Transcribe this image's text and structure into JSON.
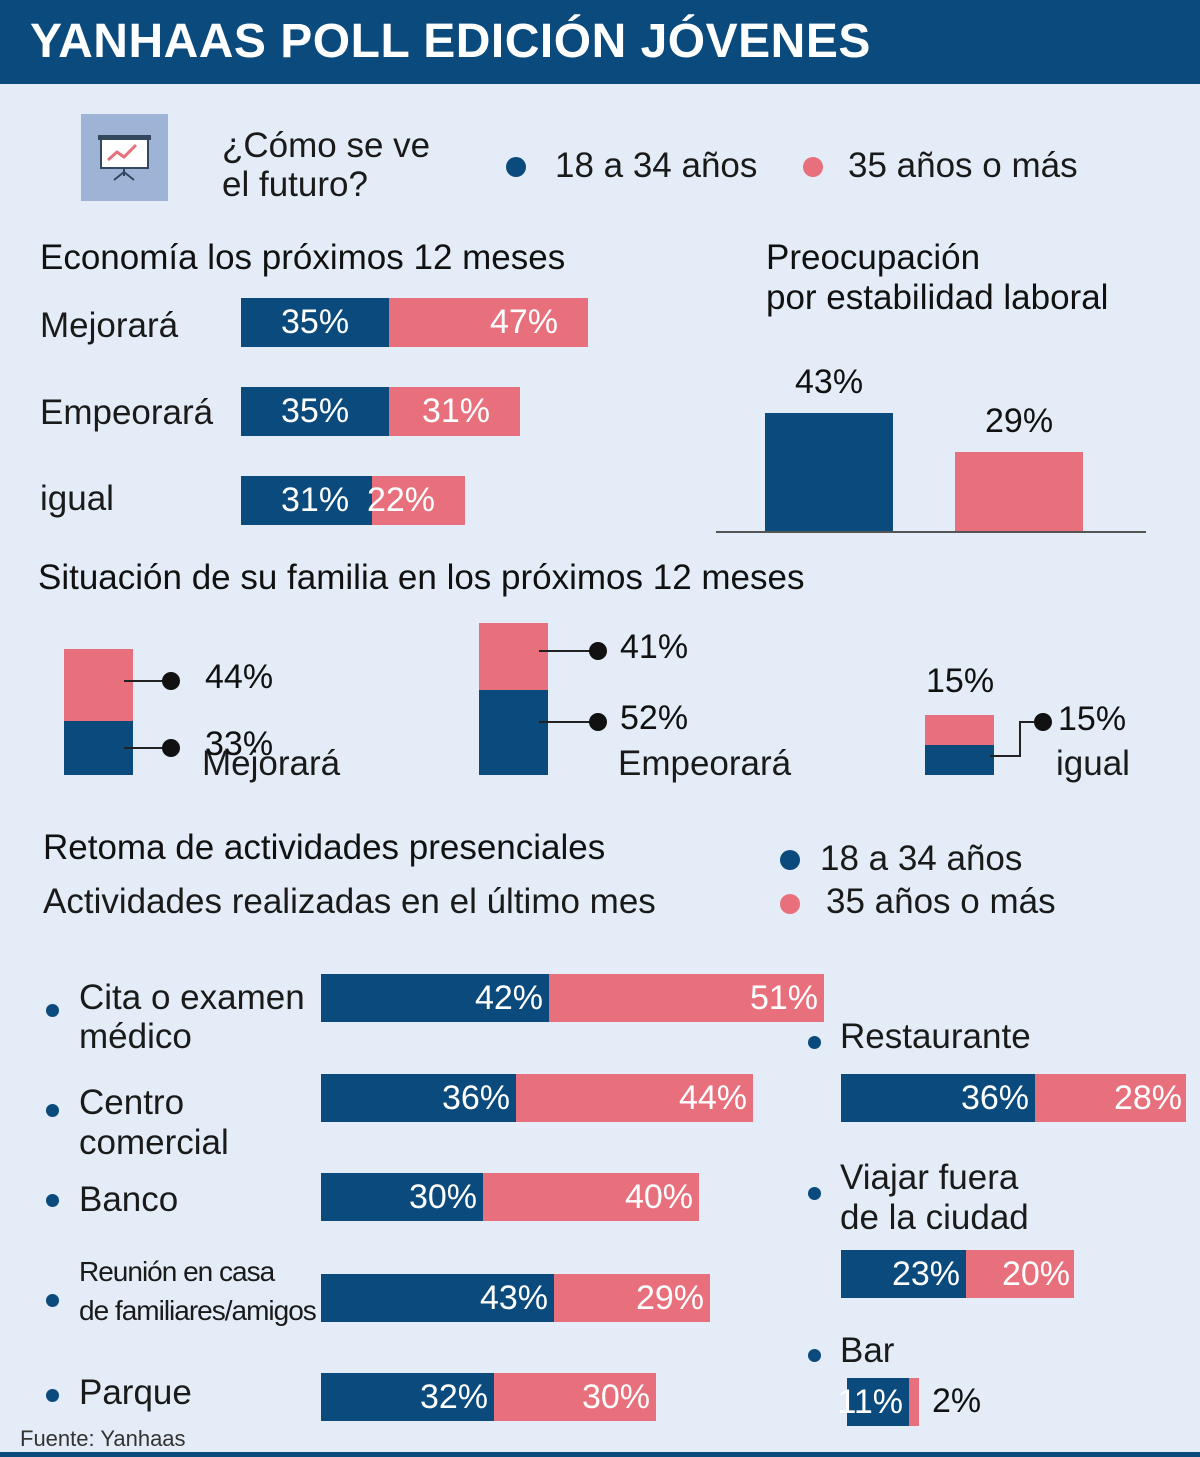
{
  "header": {
    "title": "YANHAAS POLL EDICIÓN JÓVENES"
  },
  "intro": {
    "question_line1": "¿Cómo se ve",
    "question_line2": "el futuro?",
    "icon": "presentation-chart-icon"
  },
  "legend": {
    "young": "18 a 34 años",
    "old": "35 años o más"
  },
  "colors": {
    "young": "#0b4a7c",
    "old": "#e8707d",
    "background": "#e3ecf7"
  },
  "chart_data": [
    {
      "type": "bar",
      "orientation": "horizontal-stacked",
      "title": "Economía los próximos 12 meses",
      "categories": [
        "Mejorará",
        "Empeorará",
        "igual"
      ],
      "series": [
        {
          "name": "18 a 34 años",
          "values": [
            35,
            35,
            31
          ],
          "labels": [
            "35%",
            "35%",
            "31%"
          ]
        },
        {
          "name": "35 años o más",
          "values": [
            47,
            31,
            22
          ],
          "labels": [
            "47%",
            "31%",
            "22%"
          ]
        }
      ]
    },
    {
      "type": "bar",
      "title_line1": "Preocupación",
      "title_line2": "por estabilidad laboral",
      "categories": [
        "18 a 34 años",
        "35 años o más"
      ],
      "values": [
        43,
        29
      ],
      "labels": [
        "43%",
        "29%"
      ]
    },
    {
      "type": "bar",
      "orientation": "vertical-stacked",
      "title": "Situación de su familia en los próximos 12 meses",
      "categories": [
        "Mejorará",
        "Empeorará",
        "igual"
      ],
      "series": [
        {
          "name": "18 a 34 años",
          "values": [
            33,
            52,
            15
          ],
          "labels": [
            "33%",
            "52%",
            "15%"
          ]
        },
        {
          "name": "35 años o más",
          "values": [
            44,
            41,
            15
          ],
          "labels": [
            "44%",
            "41%",
            "15%"
          ]
        }
      ]
    },
    {
      "type": "bar",
      "orientation": "horizontal-stacked",
      "title": "Retoma de actividades presenciales",
      "subtitle": "Actividades realizadas en el último mes",
      "left_group": [
        {
          "line1": "Cita o examen",
          "line2": "médico",
          "young": 42,
          "old": 51,
          "young_label": "42%",
          "old_label": "51%"
        },
        {
          "line1": "Centro",
          "line2": "comercial",
          "young": 36,
          "old": 44,
          "young_label": "36%",
          "old_label": "44%"
        },
        {
          "line1": "Banco",
          "line2": "",
          "young": 30,
          "old": 40,
          "young_label": "30%",
          "old_label": "40%"
        },
        {
          "line1": "Reunión en casa",
          "line2": "de familiares/amigos",
          "young": 43,
          "old": 29,
          "young_label": "43%",
          "old_label": "29%"
        },
        {
          "line1": "Parque",
          "line2": "",
          "young": 32,
          "old": 30,
          "young_label": "32%",
          "old_label": "30%"
        }
      ],
      "right_group": [
        {
          "line1": "Restaurante",
          "line2": "",
          "young": 36,
          "old": 28,
          "young_label": "36%",
          "old_label": "28%"
        },
        {
          "line1": "Viajar fuera",
          "line2": "de la ciudad",
          "young": 23,
          "old": 20,
          "young_label": "23%",
          "old_label": "20%"
        },
        {
          "line1": "Bar",
          "line2": "",
          "young": 11,
          "old": 2,
          "young_label": "11%",
          "old_label": "2%"
        }
      ]
    }
  ],
  "footer": {
    "source": "Fuente: Yanhaas"
  }
}
